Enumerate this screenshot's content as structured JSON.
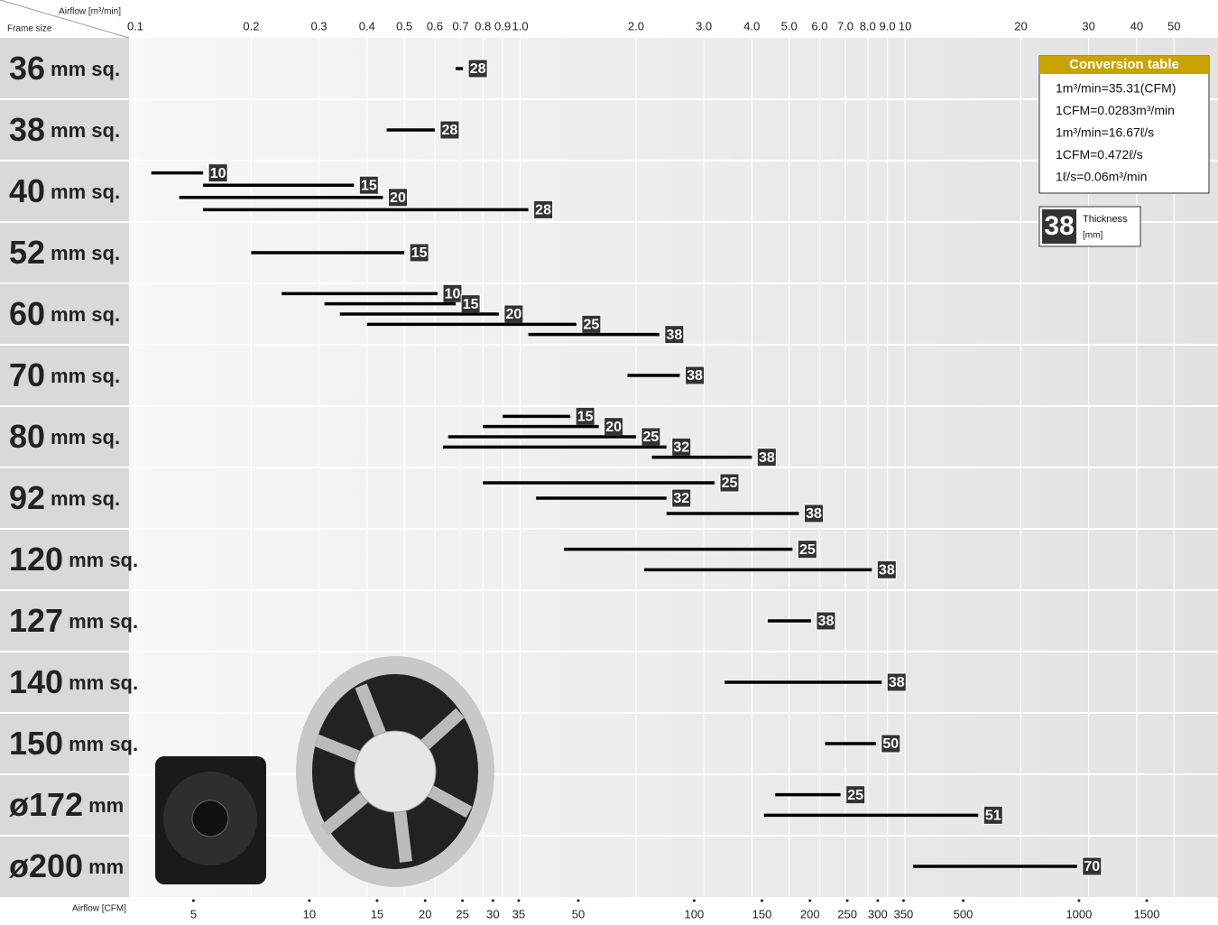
{
  "chart_data": {
    "type": "range",
    "xlabel": "Airflow [m³/min]",
    "ylabel": "Frame size",
    "x2label": "Airflow [CFM]",
    "log_x": true,
    "grid": true,
    "bar_color": "#000000",
    "badge_color": "#333333",
    "xlim": [
      0.1,
      60
    ],
    "xticks": [
      0.1,
      0.2,
      0.3,
      0.4,
      0.5,
      0.6,
      0.7,
      0.8,
      0.9,
      {
        "value": 1,
        "label": "1.0"
      },
      {
        "value": 2,
        "label": "2.0"
      },
      {
        "value": 3,
        "label": "3.0"
      },
      {
        "value": 4,
        "label": "4.0"
      },
      {
        "value": 5,
        "label": "5.0"
      },
      {
        "value": 6,
        "label": "6.0"
      },
      {
        "value": 7,
        "label": "7.0"
      },
      {
        "value": 8,
        "label": "8.0"
      },
      {
        "value": 9,
        "label": "9.0"
      },
      10,
      20,
      30,
      40,
      50
    ],
    "x2lim": [
      3.531,
      2118.6
    ],
    "x2ticks": [
      5,
      10,
      15,
      20,
      25,
      30,
      35,
      50,
      100,
      150,
      200,
      250,
      300,
      350,
      500,
      1000,
      1500
    ],
    "frames": [
      {
        "size": "36",
        "unit": "mm sq.",
        "bars": [
          {
            "thickness": 28,
            "values": [
              0.68,
              0.71
            ]
          }
        ]
      },
      {
        "size": "38",
        "unit": "mm sq.",
        "bars": [
          {
            "thickness": 28,
            "values": [
              0.45,
              0.6
            ]
          }
        ]
      },
      {
        "size": "40",
        "unit": "mm sq.",
        "bars": [
          {
            "thickness": 10,
            "values": [
              0.11,
              0.15
            ]
          },
          {
            "thickness": 15,
            "values": [
              0.15,
              0.37
            ]
          },
          {
            "thickness": 20,
            "values": [
              0.13,
              0.44
            ]
          },
          {
            "thickness": 28,
            "values": [
              0.15,
              1.05
            ]
          }
        ]
      },
      {
        "size": "52",
        "unit": "mm sq.",
        "bars": [
          {
            "thickness": 15,
            "values": [
              0.2,
              0.5
            ]
          }
        ]
      },
      {
        "size": "60",
        "unit": "mm sq.",
        "bars": [
          {
            "thickness": 10,
            "values": [
              0.24,
              0.61
            ]
          },
          {
            "thickness": 15,
            "values": [
              0.31,
              0.68
            ]
          },
          {
            "thickness": 20,
            "values": [
              0.34,
              0.88
            ]
          },
          {
            "thickness": 25,
            "values": [
              0.4,
              1.4
            ]
          },
          {
            "thickness": 38,
            "values": [
              1.05,
              2.3
            ]
          }
        ]
      },
      {
        "size": "70",
        "unit": "mm sq.",
        "bars": [
          {
            "thickness": 38,
            "values": [
              1.9,
              2.6
            ]
          }
        ]
      },
      {
        "size": "80",
        "unit": "mm sq.",
        "bars": [
          {
            "thickness": 15,
            "values": [
              0.9,
              1.35
            ]
          },
          {
            "thickness": 20,
            "values": [
              0.8,
              1.6
            ]
          },
          {
            "thickness": 25,
            "values": [
              0.65,
              2.0
            ]
          },
          {
            "thickness": 32,
            "values": [
              0.63,
              2.4
            ]
          },
          {
            "thickness": 38,
            "values": [
              2.2,
              4.0
            ]
          }
        ]
      },
      {
        "size": "92",
        "unit": "mm sq.",
        "bars": [
          {
            "thickness": 25,
            "values": [
              0.8,
              3.2
            ]
          },
          {
            "thickness": 32,
            "values": [
              1.1,
              2.4
            ]
          },
          {
            "thickness": 38,
            "values": [
              2.4,
              5.3
            ]
          }
        ]
      },
      {
        "size": "120",
        "unit": "mm sq.",
        "bars": [
          {
            "thickness": 25,
            "values": [
              1.3,
              5.1
            ]
          },
          {
            "thickness": 38,
            "values": [
              2.1,
              8.2
            ]
          }
        ]
      },
      {
        "size": "127",
        "unit": "mm sq.",
        "bars": [
          {
            "thickness": 38,
            "values": [
              4.4,
              5.7
            ]
          }
        ]
      },
      {
        "size": "140",
        "unit": "mm sq.",
        "bars": [
          {
            "thickness": 38,
            "values": [
              3.4,
              8.7
            ]
          }
        ]
      },
      {
        "size": "150",
        "unit": "mm sq.",
        "bars": [
          {
            "thickness": 50,
            "values": [
              6.2,
              8.4
            ]
          }
        ]
      },
      {
        "size": "ø172",
        "unit": "mm",
        "bars": [
          {
            "thickness": 25,
            "values": [
              4.6,
              6.8
            ]
          },
          {
            "thickness": 51,
            "values": [
              4.3,
              15.5
            ]
          }
        ]
      },
      {
        "size": "ø200",
        "unit": "mm",
        "bars": [
          {
            "thickness": 70,
            "values": [
              10.5,
              28
            ]
          }
        ]
      }
    ],
    "conversion_table": {
      "title": "Conversion table",
      "rows": [
        "1m³/min=35.31(CFM)",
        "1CFM=0.0283m³/min",
        "1m³/min=16.67ℓ/s",
        "1CFM=0.472ℓ/s",
        "1ℓ/s=0.06m³/min"
      ]
    },
    "legend": {
      "badge": "38",
      "label": "Thickness",
      "unit": "[mm]"
    }
  }
}
